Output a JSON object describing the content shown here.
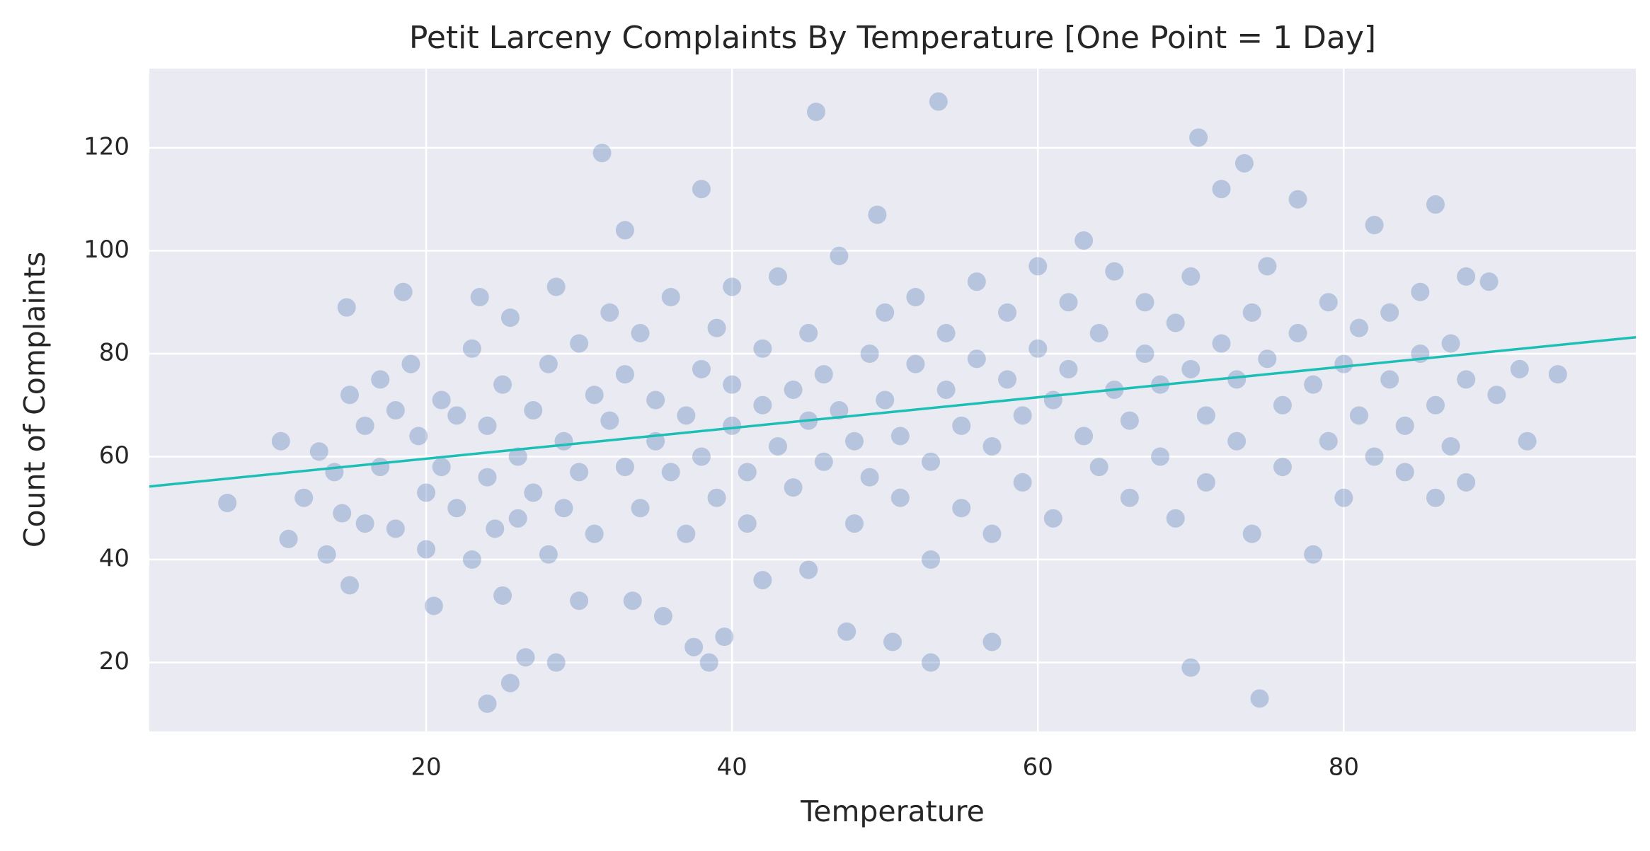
{
  "chart_data": {
    "type": "scatter",
    "title": "Petit Larceny Complaints By Temperature [One Point = 1 Day]",
    "xlabel": "Temperature",
    "ylabel": "Count of Complaints",
    "color": "#4c72b0",
    "xlim": [
      1.9,
      99.1
    ],
    "ylim": [
      6.6,
      135.4
    ],
    "xticks": [
      20,
      40,
      60,
      80
    ],
    "yticks": [
      20,
      40,
      60,
      80,
      100,
      120
    ],
    "grid": true,
    "x": [
      12,
      13,
      13.5,
      14,
      14.5,
      15,
      16,
      16,
      17,
      17,
      18,
      18,
      19,
      19.5,
      20,
      20,
      21,
      21,
      22,
      22,
      23,
      23,
      23.5,
      24,
      24,
      24.5,
      25,
      25,
      25.5,
      26,
      26,
      26.5,
      27,
      27,
      28,
      28,
      28.5,
      29,
      29,
      30,
      30,
      30,
      31,
      31,
      32,
      32,
      33,
      33,
      33.5,
      34,
      34,
      35,
      35,
      35.5,
      36,
      36,
      37,
      37,
      37.5,
      38,
      38,
      39,
      39,
      39.5,
      40,
      40,
      40,
      41,
      41,
      42,
      42,
      42,
      43,
      43,
      44,
      44,
      45,
      45,
      45,
      46,
      46,
      47,
      47,
      47.5,
      48,
      48,
      49,
      49,
      50,
      50,
      50.5,
      51,
      51,
      52,
      52,
      53,
      53,
      54,
      54,
      55,
      55,
      56,
      56,
      57,
      57,
      58,
      58,
      59,
      59,
      60,
      60,
      61,
      61,
      62,
      62,
      63,
      63,
      64,
      64,
      65,
      65,
      66,
      66,
      67,
      67,
      68,
      68,
      69,
      69,
      70,
      70,
      71,
      71,
      72,
      72,
      73,
      73,
      74,
      74,
      75,
      75,
      76,
      76,
      77,
      77,
      78,
      78,
      79,
      79,
      80,
      80,
      81,
      81,
      82,
      82,
      83,
      83,
      84,
      84,
      85,
      85,
      86,
      86,
      87,
      87,
      88,
      88,
      7,
      10.5,
      11,
      14.8,
      15,
      18.5,
      20.5,
      24,
      25.5,
      28.5,
      31.5,
      33,
      38,
      38.5,
      45.5,
      53.5,
      49.5,
      53,
      57,
      70,
      70.5,
      73.5,
      74.5,
      86,
      92,
      94,
      91.5,
      90,
      88,
      89.5
    ],
    "values": [
      52,
      61,
      41,
      57,
      49,
      72,
      66,
      47,
      58,
      75,
      69,
      46,
      78,
      64,
      53,
      42,
      71,
      58,
      68,
      50,
      81,
      40,
      91,
      66,
      56,
      46,
      74,
      33,
      87,
      60,
      48,
      21,
      69,
      53,
      78,
      41,
      93,
      63,
      50,
      82,
      57,
      32,
      72,
      45,
      67,
      88,
      58,
      76,
      32,
      84,
      50,
      63,
      71,
      29,
      57,
      91,
      68,
      45,
      23,
      77,
      60,
      85,
      52,
      25,
      66,
      74,
      93,
      57,
      47,
      70,
      81,
      36,
      62,
      95,
      54,
      73,
      67,
      84,
      38,
      59,
      76,
      69,
      99,
      26,
      63,
      47,
      80,
      56,
      71,
      88,
      24,
      64,
      52,
      78,
      91,
      59,
      40,
      73,
      84,
      66,
      50,
      79,
      94,
      62,
      45,
      75,
      88,
      68,
      55,
      81,
      97,
      71,
      48,
      77,
      90,
      64,
      102,
      84,
      58,
      73,
      96,
      67,
      52,
      80,
      90,
      74,
      60,
      86,
      48,
      77,
      95,
      68,
      55,
      82,
      112,
      75,
      63,
      88,
      45,
      79,
      97,
      70,
      58,
      84,
      110,
      74,
      41,
      90,
      63,
      78,
      52,
      85,
      68,
      105,
      60,
      75,
      88,
      66,
      57,
      80,
      92,
      70,
      52,
      82,
      62,
      75,
      55,
      51,
      63,
      44,
      89,
      35,
      92,
      31,
      12,
      16,
      20,
      119,
      104,
      112,
      20,
      127,
      129,
      107,
      20,
      24,
      19,
      122,
      117,
      13,
      109,
      63,
      76,
      77,
      72,
      95,
      94
    ],
    "trend": {
      "x": [
        1.9,
        99.1
      ],
      "values": [
        54.2,
        83.2
      ],
      "color": "#1cbfb6"
    }
  }
}
